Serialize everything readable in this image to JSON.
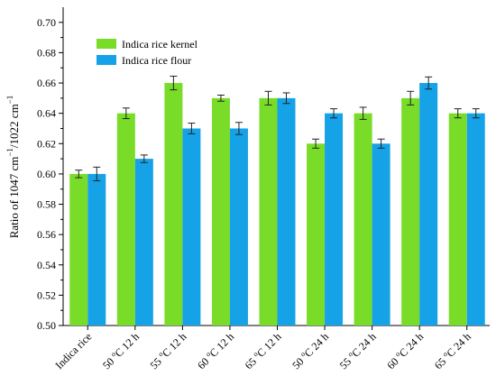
{
  "chart_data": {
    "type": "bar",
    "ylabel_parts": [
      "Ratio of 1047 cm",
      "−1",
      "/1022 cm",
      "−1"
    ],
    "ylim": [
      0.5,
      0.71
    ],
    "yticks": [
      0.5,
      0.52,
      0.54,
      0.56,
      0.58,
      0.6,
      0.62,
      0.64,
      0.66,
      0.68,
      0.7
    ],
    "ytick_labels": [
      "0.50",
      "0.52",
      "0.54",
      "0.56",
      "0.58",
      "0.60",
      "0.62",
      "0.64",
      "0.66",
      "0.68",
      "0.70"
    ],
    "categories": [
      {
        "pre": "Indica rice",
        "sup": "",
        "post": ""
      },
      {
        "pre": "50 ",
        "sup": "o",
        "post": "C 12 h"
      },
      {
        "pre": "55 ",
        "sup": "o",
        "post": "C 12 h"
      },
      {
        "pre": "60 ",
        "sup": "o",
        "post": "C 12 h"
      },
      {
        "pre": "65 ",
        "sup": "o",
        "post": "C 12 h"
      },
      {
        "pre": "50 ",
        "sup": "o",
        "post": "C 24 h"
      },
      {
        "pre": "55 ",
        "sup": "o",
        "post": "C 24 h"
      },
      {
        "pre": "60 ",
        "sup": "o",
        "post": "C 24 h"
      },
      {
        "pre": "65 ",
        "sup": "o",
        "post": "C 24 h"
      }
    ],
    "series": [
      {
        "name": "Indica rice kernel",
        "color": "#78dc28",
        "values": [
          0.6,
          0.64,
          0.66,
          0.65,
          0.65,
          0.62,
          0.64,
          0.65,
          0.64
        ],
        "errors": [
          0.0025,
          0.0035,
          0.0045,
          0.002,
          0.0045,
          0.003,
          0.004,
          0.0045,
          0.003
        ]
      },
      {
        "name": "Indica rice flour",
        "color": "#16a2e6",
        "values": [
          0.6,
          0.61,
          0.63,
          0.63,
          0.65,
          0.64,
          0.62,
          0.66,
          0.64
        ],
        "errors": [
          0.0045,
          0.0025,
          0.0035,
          0.004,
          0.0035,
          0.003,
          0.003,
          0.004,
          0.003
        ]
      }
    ],
    "legend_position": "top-left",
    "grid": false
  }
}
